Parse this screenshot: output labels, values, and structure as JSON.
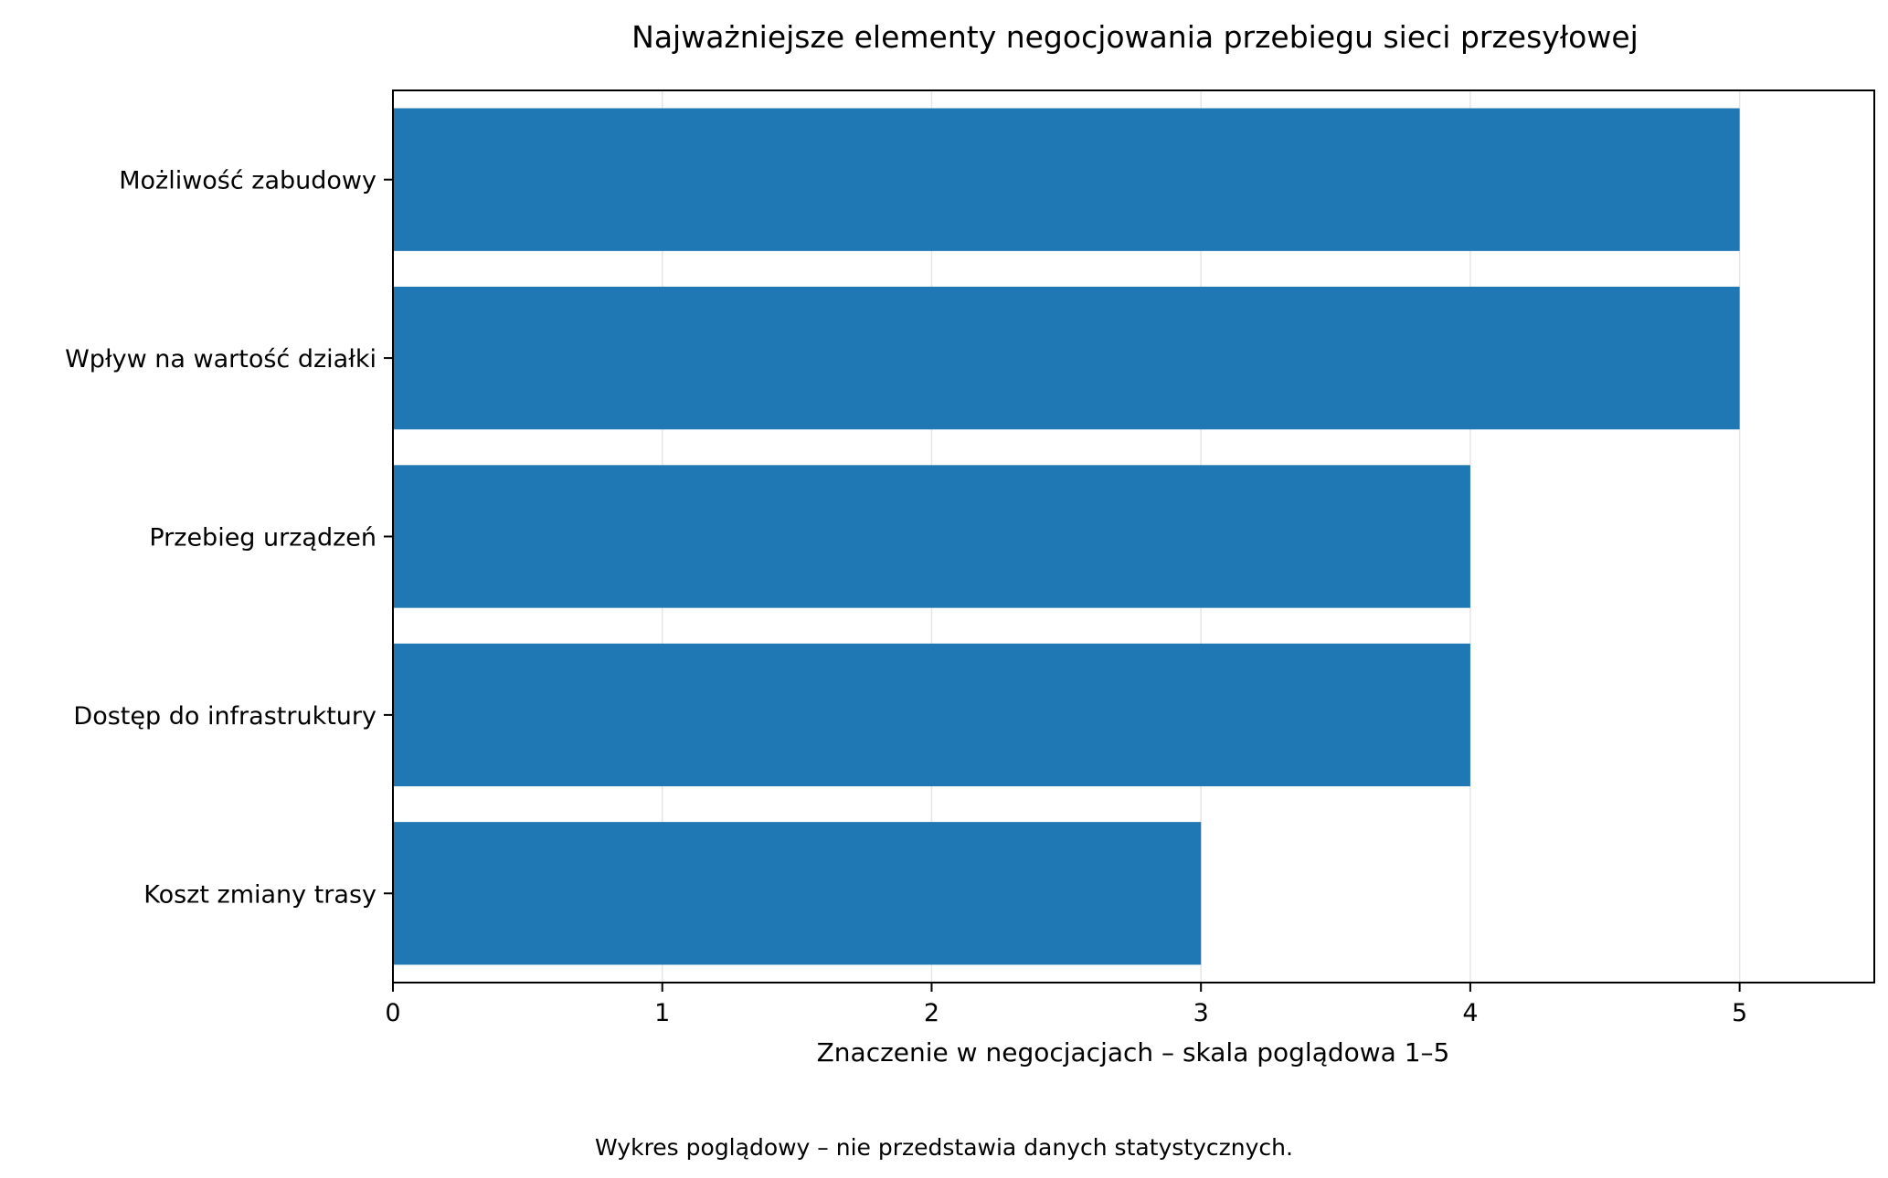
{
  "chart_data": {
    "type": "bar",
    "orientation": "horizontal",
    "title": "Najważniejsze elementy negocjowania przebiegu sieci przesyłowej",
    "xlabel": "Znaczenie w negocjacjach – skala poglądowa 1–5",
    "ylabel": "",
    "categories": [
      "Możliwość zabudowy",
      "Wpływ na wartość działki",
      "Przebieg urządzeń",
      "Dostęp do infrastruktury",
      "Koszt zmiany trasy"
    ],
    "values": [
      5,
      5,
      4,
      4,
      3
    ],
    "xlim": [
      0,
      5.5
    ],
    "xticks": [
      0,
      1,
      2,
      3,
      4,
      5
    ],
    "grid": "vertical",
    "legend": "none",
    "bar_color": "#1f77b4",
    "grid_color": "#e6e6e6",
    "footnote": "Wykres poglądowy – nie przedstawia danych statystycznych."
  }
}
